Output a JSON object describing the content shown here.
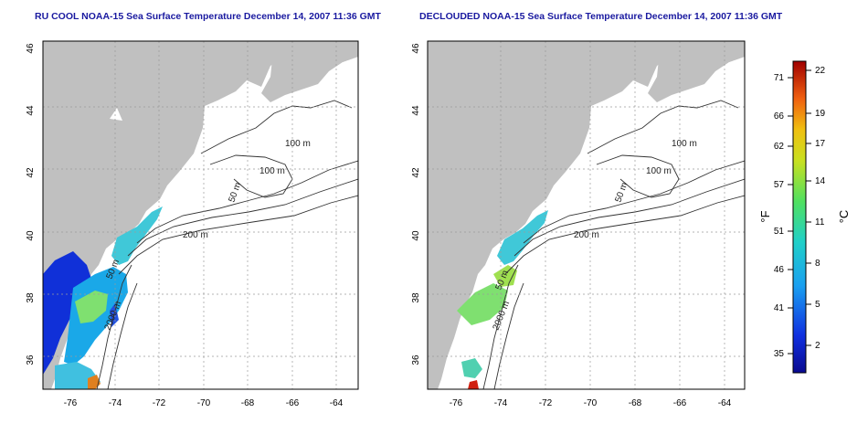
{
  "left_panel": {
    "title": "RU COOL NOAA-15 Sea Surface Temperature December 14, 2007 11:36 GMT"
  },
  "right_panel": {
    "title": "DECLOUDED NOAA-15 Sea Surface Temperature December 14, 2007 11:36 GMT"
  },
  "axes": {
    "lon_ticks": [
      "-76",
      "-74",
      "-72",
      "-70",
      "-68",
      "-66",
      "-64"
    ],
    "lat_ticks": [
      "36",
      "38",
      "40",
      "42",
      "44",
      "46"
    ]
  },
  "contour_labels": {
    "c50": "50 m",
    "c100": "100 m",
    "c200": "200 m",
    "c2000": "2000 m"
  },
  "colorbar": {
    "unit_f": "°F",
    "unit_c": "°C",
    "ticks_f": [
      "71",
      "66",
      "62",
      "57",
      "51",
      "46",
      "41",
      "35"
    ],
    "ticks_c": [
      "22",
      "19",
      "17",
      "14",
      "11",
      "8",
      "5",
      "2"
    ]
  },
  "colors": {
    "land": "#c0c0c0",
    "contour": "#333333",
    "grid": "#9a9a9a",
    "title": "#1a1aa0"
  }
}
